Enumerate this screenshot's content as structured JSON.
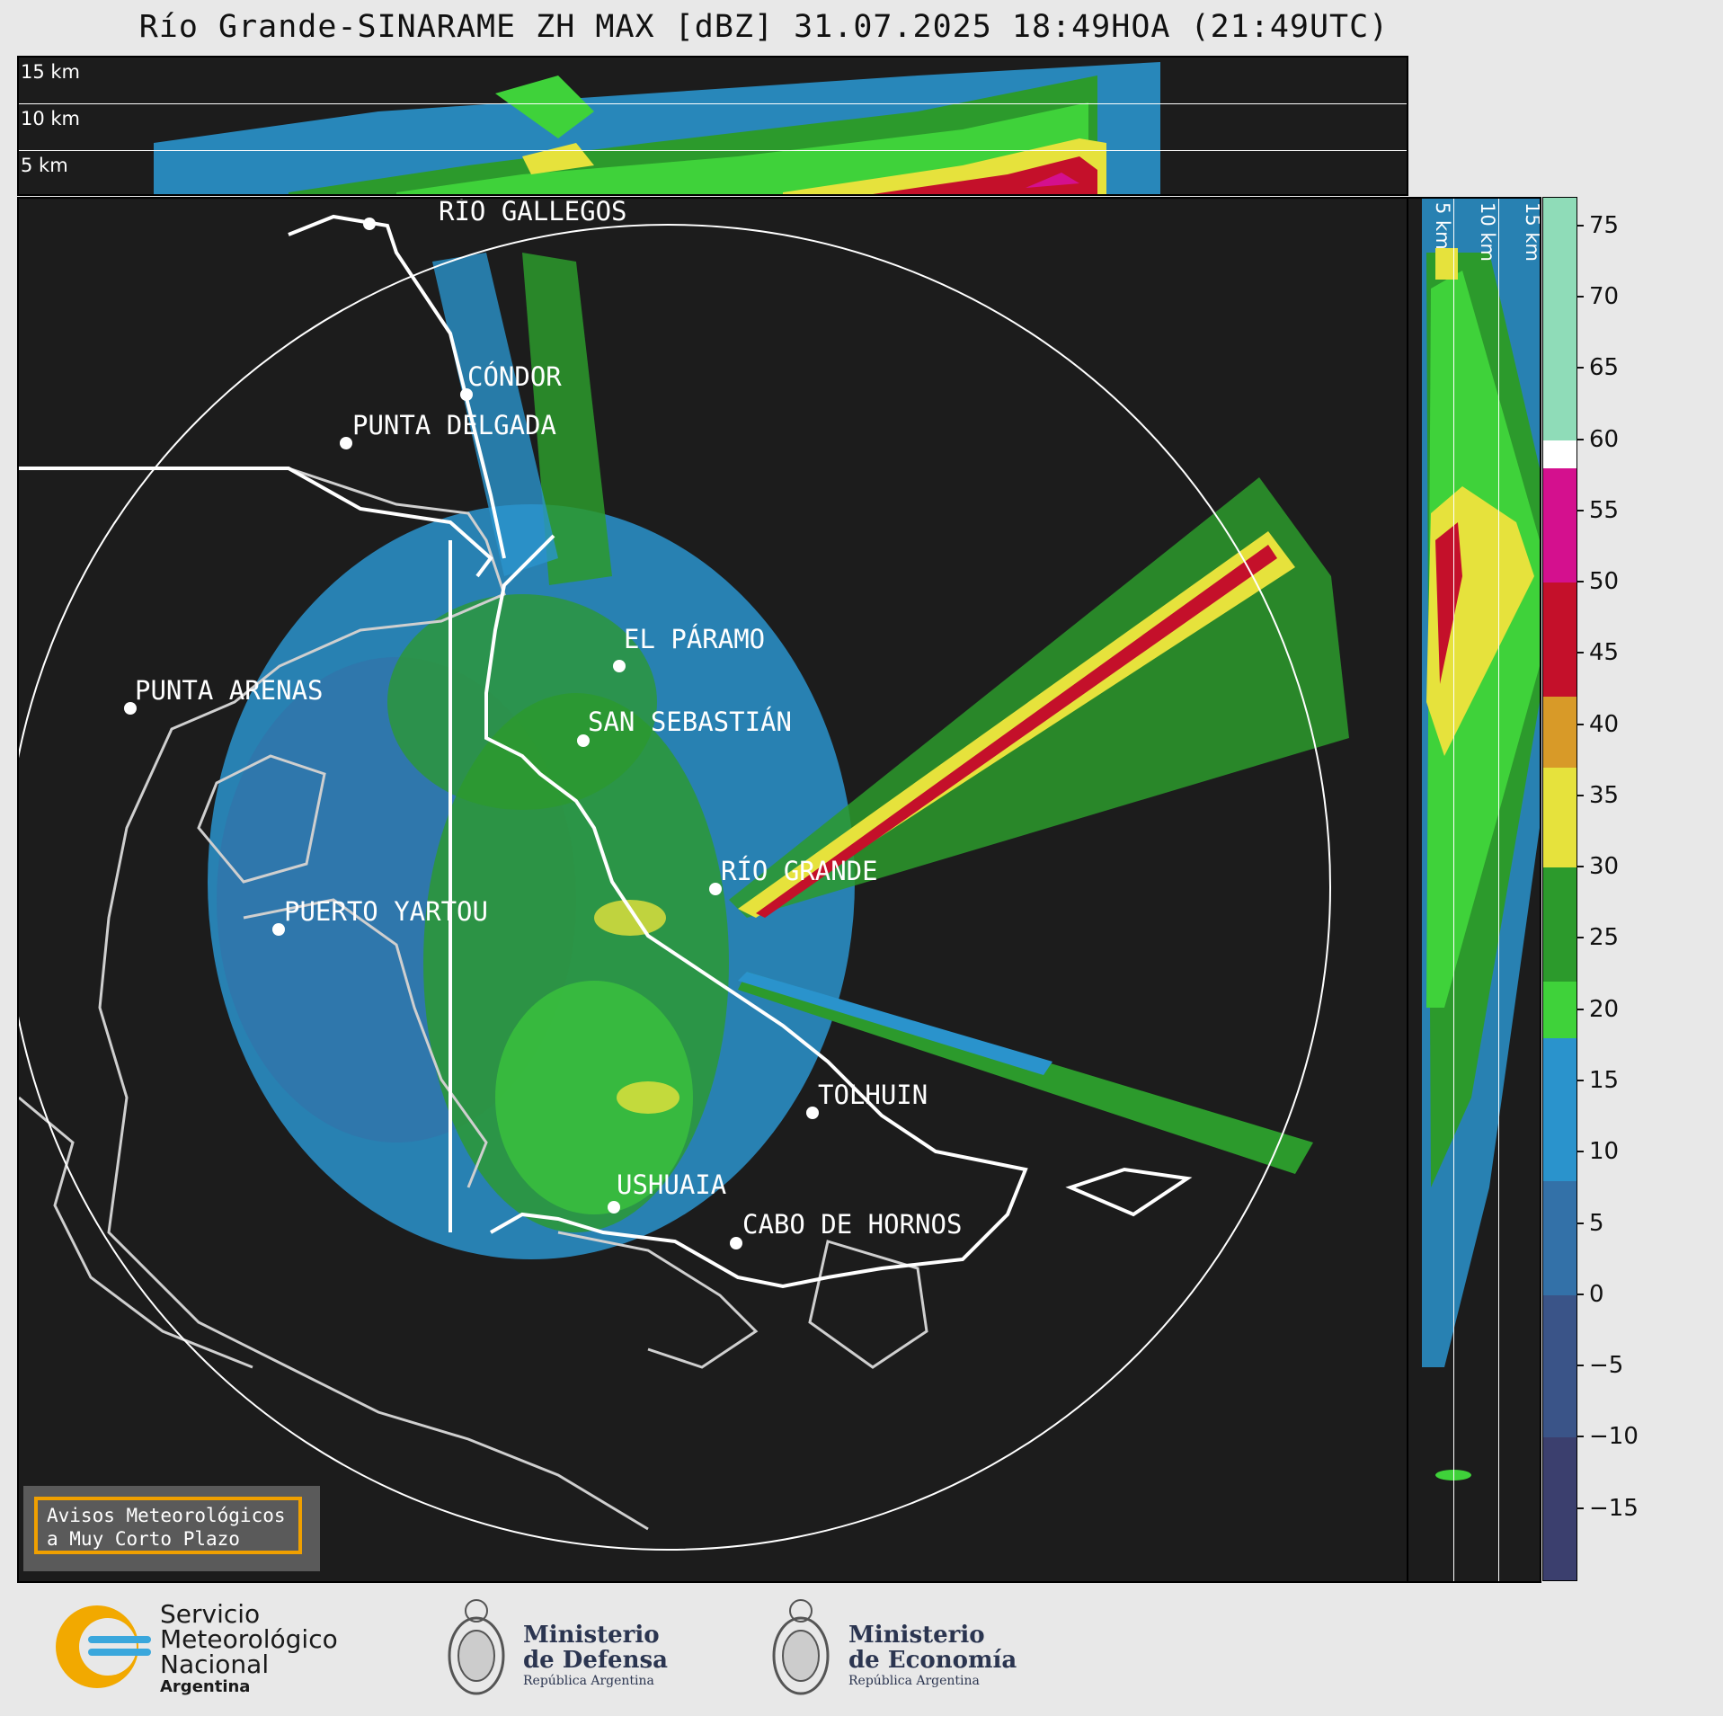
{
  "title": "Río Grande-SINARAME ZH MAX [dBZ] 31.07.2025 18:49HOA (21:49UTC)",
  "top_panel": {
    "levels": [
      "15 km",
      "10 km",
      "5 km"
    ]
  },
  "side_panel": {
    "levels": [
      "5 km",
      "10 km",
      "15 km"
    ]
  },
  "colorbar": {
    "unit": "dBZ",
    "range": [
      -20,
      77
    ],
    "ticks": [
      "75",
      "70",
      "65",
      "60",
      "55",
      "50",
      "45",
      "40",
      "35",
      "30",
      "25",
      "20",
      "15",
      "10",
      "5",
      "0",
      "−5",
      "−10",
      "−15"
    ],
    "tick_values": [
      75,
      70,
      65,
      60,
      55,
      50,
      45,
      40,
      35,
      30,
      25,
      20,
      15,
      10,
      5,
      0,
      -5,
      -10,
      -15
    ],
    "stops": [
      {
        "from": -20,
        "to": -10,
        "color": "#3b3f6e"
      },
      {
        "from": -10,
        "to": 0,
        "color": "#3a5488"
      },
      {
        "from": 0,
        "to": 8,
        "color": "#3371a8"
      },
      {
        "from": 8,
        "to": 18,
        "color": "#2a93cc"
      },
      {
        "from": 18,
        "to": 22,
        "color": "#3fd23a"
      },
      {
        "from": 22,
        "to": 30,
        "color": "#2c9a2c"
      },
      {
        "from": 30,
        "to": 37,
        "color": "#e6e23c"
      },
      {
        "from": 37,
        "to": 42,
        "color": "#d89a28"
      },
      {
        "from": 42,
        "to": 50,
        "color": "#c4102a"
      },
      {
        "from": 50,
        "to": 58,
        "color": "#d4108e"
      },
      {
        "from": 58,
        "to": 60,
        "color": "#ffffff"
      },
      {
        "from": 60,
        "to": 77,
        "color": "#8fdcb8"
      }
    ]
  },
  "cities": [
    {
      "name": "RÍO GALLEGOS"
    },
    {
      "name": "CÓNDOR"
    },
    {
      "name": "PUNTA DELGADA"
    },
    {
      "name": "EL PÁRAMO"
    },
    {
      "name": "SAN SEBASTIÁN"
    },
    {
      "name": "PUNTA ARENAS"
    },
    {
      "name": "RÍO GRANDE"
    },
    {
      "name": "PUERTO YARTOU"
    },
    {
      "name": "TOLHUIN"
    },
    {
      "name": "USHUAIA"
    },
    {
      "name": "CABO DE HORNOS"
    }
  ],
  "notice": {
    "line1": "Avisos Meteorológicos",
    "line2": "a Muy Corto Plazo"
  },
  "footer": {
    "smn": {
      "line1": "Servicio",
      "line2": "Meteorológico",
      "line3": "Nacional",
      "line4": "Argentina"
    },
    "defensa": {
      "line1": "Ministerio",
      "line2": "de Defensa",
      "line3": "República Argentina"
    },
    "economia": {
      "line1": "Ministerio",
      "line2": "de Economía",
      "line3": "República Argentina"
    }
  },
  "colors": {
    "background": "#1c1c1c",
    "coast": "#ffffff",
    "border": "#cfcfcf"
  }
}
